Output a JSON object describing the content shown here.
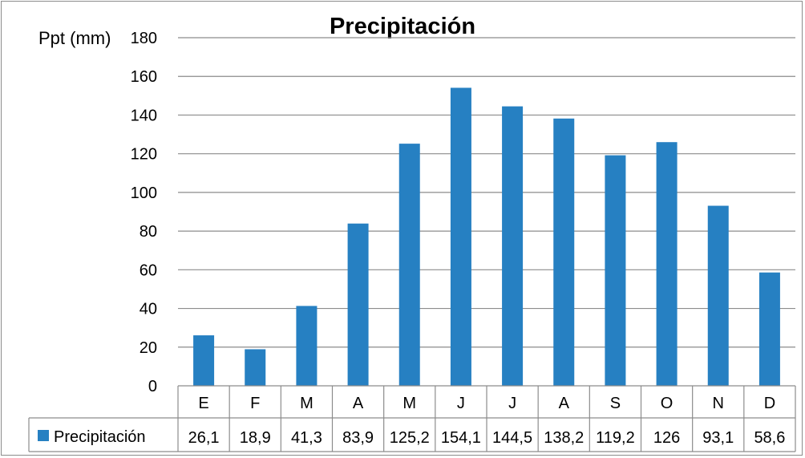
{
  "chart_data": {
    "type": "bar",
    "title": "Precipitación",
    "ylabel": "Ppt (mm)",
    "xlabel": "",
    "categories": [
      "E",
      "F",
      "M",
      "A",
      "M",
      "J",
      "J",
      "A",
      "S",
      "O",
      "N",
      "D"
    ],
    "series": [
      {
        "name": "Precipitación",
        "values": [
          26.1,
          18.9,
          41.3,
          83.9,
          125.2,
          154.1,
          144.5,
          138.2,
          119.2,
          126,
          93.1,
          58.6
        ],
        "labels": [
          "26,1",
          "18,9",
          "41,3",
          "83,9",
          "125,2",
          "154,1",
          "144,5",
          "138,2",
          "119,2",
          "126",
          "93,1",
          "58,6"
        ],
        "color": "#2680c2"
      }
    ],
    "ylim": [
      0,
      180
    ],
    "yticks": [
      0,
      20,
      40,
      60,
      80,
      100,
      120,
      140,
      160,
      180
    ],
    "grid": true,
    "data_table": true,
    "legend": "data-table"
  }
}
